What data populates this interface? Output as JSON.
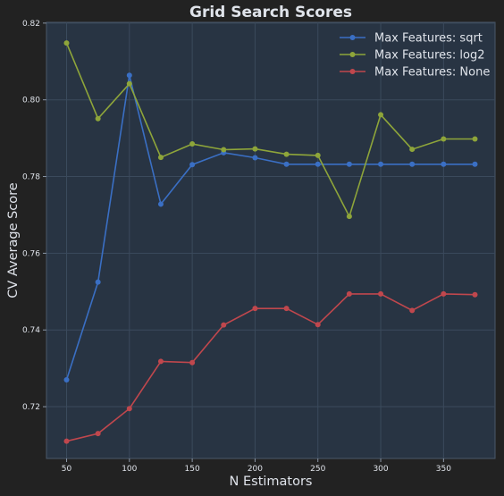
{
  "chart_data": {
    "type": "line",
    "title": "Grid Search Scores",
    "xlabel": "N Estimators",
    "ylabel": "CV Average Score",
    "xlim": [
      34,
      391
    ],
    "ylim": [
      0.7065,
      0.8202
    ],
    "x_ticks": [
      50,
      100,
      150,
      200,
      250,
      300,
      350
    ],
    "y_ticks": [
      0.72,
      0.74,
      0.76,
      0.78,
      0.8,
      0.82
    ],
    "y_tick_labels": [
      "0.72",
      "0.74",
      "0.76",
      "0.78",
      "0.80",
      "0.82"
    ],
    "grid": true,
    "legend_position": "top-right",
    "x": [
      50,
      75,
      100,
      125,
      150,
      175,
      200,
      225,
      250,
      275,
      300,
      325,
      350,
      375
    ],
    "series": [
      {
        "name": "Max Features: sqrt",
        "color": "#3a6fc4",
        "values": [
          0.727,
          0.7525,
          0.8064,
          0.7728,
          0.7831,
          0.7862,
          0.7849,
          0.7832,
          0.7832,
          0.7832,
          0.7832,
          0.7832,
          0.7832,
          0.7832
        ]
      },
      {
        "name": "Max Features: log2",
        "color": "#8ea53a",
        "values": [
          0.8148,
          0.7951,
          0.8042,
          0.785,
          0.7885,
          0.787,
          0.7872,
          0.7858,
          0.7855,
          0.7696,
          0.7961,
          0.7871,
          0.7898,
          0.7898
        ]
      },
      {
        "name": "Max Features: None",
        "color": "#c0474d",
        "values": [
          0.711,
          0.713,
          0.7195,
          0.7318,
          0.7315,
          0.7413,
          0.7456,
          0.7456,
          0.7414,
          0.7494,
          0.7494,
          0.7451,
          0.7494,
          0.7492
        ]
      }
    ]
  }
}
